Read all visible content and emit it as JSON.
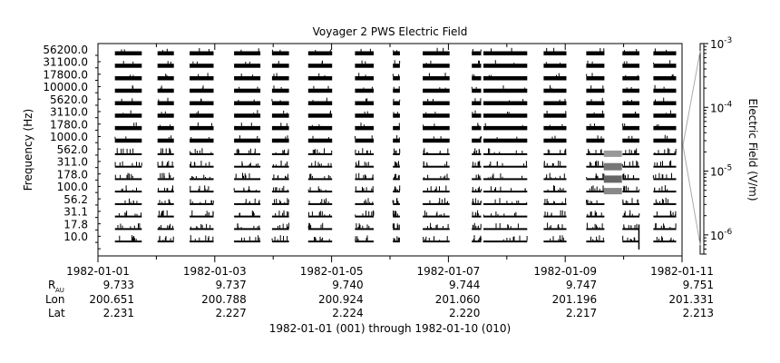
{
  "chart_data": {
    "type": "heatmap",
    "title": "Voyager 2 PWS Electric Field",
    "xlabel": "1982-01-01 (001) through 1982-01-10 (010)",
    "ylabel": "Frequency (Hz)",
    "colorbar_label": "Electric Field (V/m)",
    "colorbar_scale": "log",
    "colorbar_range": [
      5e-07,
      0.001
    ],
    "colorbar_ticks": [
      {
        "value": 0.001,
        "mantissa": "10",
        "exp": "-3"
      },
      {
        "value": 0.0001,
        "mantissa": "10",
        "exp": "-4"
      },
      {
        "value": 1e-05,
        "mantissa": "10",
        "exp": "-5"
      },
      {
        "value": 1e-06,
        "mantissa": "10",
        "exp": "-6"
      }
    ],
    "y_channels": [
      "10.0",
      "17.8",
      "31.1",
      "56.2",
      "100.0",
      "178.0",
      "311.0",
      "562.0",
      "1000.0",
      "1780.0",
      "3110.0",
      "5620.0",
      "10000.0",
      "17800.0",
      "31100.0",
      "56200.0"
    ],
    "x_range_days": [
      0,
      10
    ],
    "x_ticks": [
      {
        "day": 0,
        "date": "1982-01-01",
        "r_au": "9.733",
        "lon": "200.651",
        "lat": "2.231"
      },
      {
        "day": 2,
        "date": "1982-01-03",
        "r_au": "9.737",
        "lon": "200.788",
        "lat": "2.227"
      },
      {
        "day": 4,
        "date": "1982-01-05",
        "r_au": "9.740",
        "lon": "200.924",
        "lat": "2.224"
      },
      {
        "day": 6,
        "date": "1982-01-07",
        "r_au": "9.744",
        "lon": "201.060",
        "lat": "2.220"
      },
      {
        "day": 8,
        "date": "1982-01-09",
        "r_au": "9.747",
        "lon": "201.196",
        "lat": "2.217"
      },
      {
        "day": 10,
        "date": "1982-01-11",
        "r_au": "9.751",
        "lon": "201.331",
        "lat": "2.213"
      }
    ],
    "ephemeris_labels": {
      "r": "R",
      "r_sub": "AU",
      "lon": "Lon",
      "lat": "Lat"
    },
    "data_segments_days": [
      [
        0.29,
        0.75
      ],
      [
        1.02,
        1.3
      ],
      [
        1.57,
        1.98
      ],
      [
        2.33,
        2.78
      ],
      [
        2.98,
        3.27
      ],
      [
        3.6,
        4.01
      ],
      [
        4.4,
        4.72
      ],
      [
        5.05,
        5.17
      ],
      [
        5.56,
        6.02
      ],
      [
        6.4,
        6.56
      ],
      [
        6.6,
        7.35
      ],
      [
        7.63,
        8.02
      ],
      [
        8.36,
        8.67
      ],
      [
        8.98,
        9.27
      ],
      [
        9.51,
        9.9
      ]
    ]
  }
}
